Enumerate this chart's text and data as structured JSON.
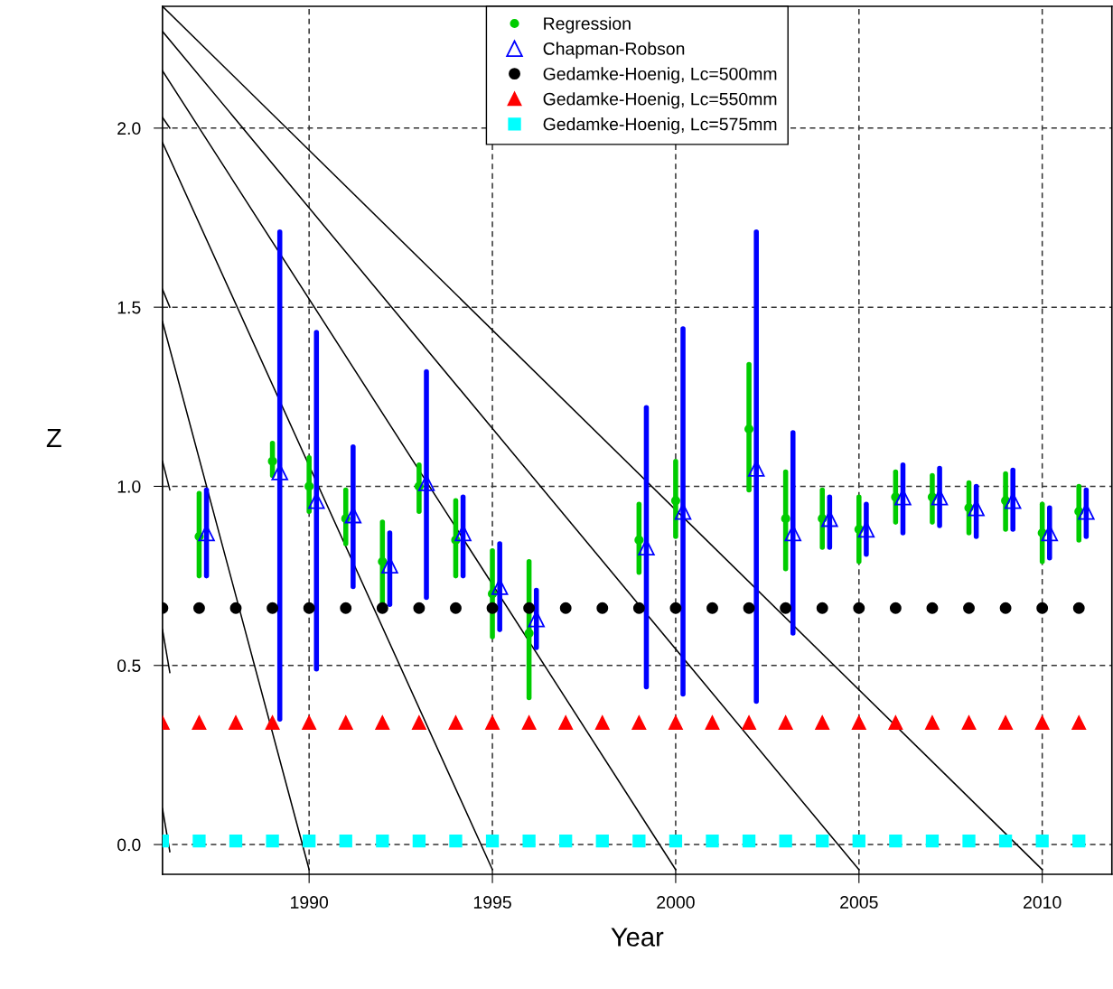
{
  "chart_data": {
    "type": "scatter",
    "xlabel": "Year",
    "ylabel": "Z",
    "xlim": [
      1986,
      2011.9
    ],
    "ylim": [
      -0.083,
      2.34
    ],
    "xticks": [
      1990,
      1995,
      2000,
      2005,
      2010
    ],
    "yticks": [
      {
        "value": 0,
        "label": "0.0"
      },
      {
        "value": 0.5,
        "label": "0.5"
      },
      {
        "value": 1,
        "label": "1.0"
      },
      {
        "value": 1.5,
        "label": "1.5"
      },
      {
        "value": 2,
        "label": "2.0"
      }
    ],
    "grid": true,
    "line_style": "dashed",
    "legend": "top",
    "series": [
      {
        "name": "Regression",
        "color": "#00cc00",
        "marker": "circle",
        "x": [
          1987,
          1989,
          1990,
          1991,
          1992,
          1993,
          1994,
          1995,
          1996,
          1999,
          2000,
          2002,
          2003,
          2004,
          2005,
          2006,
          2007,
          2008,
          2009,
          2010,
          2011
        ],
        "values": [
          0.86,
          1.07,
          1.0,
          0.91,
          0.79,
          1.0,
          0.85,
          0.7,
          0.59,
          0.85,
          0.96,
          1.16,
          0.91,
          0.91,
          0.88,
          0.97,
          0.97,
          0.94,
          0.96,
          0.87,
          0.93
        ],
        "errors": [
          [
            0.75,
            0.98
          ],
          [
            1.03,
            1.12
          ],
          [
            0.93,
            1.08
          ],
          [
            0.84,
            0.99
          ],
          [
            0.67,
            0.9
          ],
          [
            0.93,
            1.06
          ],
          [
            0.75,
            0.96
          ],
          [
            0.58,
            0.82
          ],
          [
            0.41,
            0.79
          ],
          [
            0.76,
            0.95
          ],
          [
            0.86,
            1.07
          ],
          [
            0.99,
            1.34
          ],
          [
            0.77,
            1.04
          ],
          [
            0.83,
            0.99
          ],
          [
            0.79,
            0.97
          ],
          [
            0.9,
            1.04
          ],
          [
            0.9,
            1.03
          ],
          [
            0.87,
            1.01
          ],
          [
            0.88,
            1.035
          ],
          [
            0.79,
            0.95
          ],
          [
            0.85,
            1.0
          ]
        ]
      },
      {
        "name": "Chapman-Robson",
        "color": "#0000ff",
        "marker": "triangle",
        "x": [
          1987.2,
          1989.2,
          1990.2,
          1991.2,
          1992.2,
          1993.2,
          1994.2,
          1995.2,
          1996.2,
          1999.2,
          2000.2,
          2002.2,
          2003.2,
          2004.2,
          2005.2,
          2006.2,
          2007.2,
          2008.2,
          2009.2,
          2010.2,
          2011.2
        ],
        "values": [
          0.87,
          1.04,
          0.96,
          0.92,
          0.78,
          1.01,
          0.87,
          0.72,
          0.63,
          0.83,
          0.93,
          1.05,
          0.87,
          0.91,
          0.88,
          0.97,
          0.97,
          0.94,
          0.96,
          0.87,
          0.93
        ],
        "errors": [
          [
            0.75,
            0.99
          ],
          [
            0.35,
            1.71
          ],
          [
            0.49,
            1.43
          ],
          [
            0.72,
            1.11
          ],
          [
            0.67,
            0.87
          ],
          [
            0.69,
            1.32
          ],
          [
            0.75,
            0.97
          ],
          [
            0.6,
            0.84
          ],
          [
            0.55,
            0.71
          ],
          [
            0.44,
            1.22
          ],
          [
            0.42,
            1.44
          ],
          [
            0.4,
            1.71
          ],
          [
            0.59,
            1.15
          ],
          [
            0.83,
            0.97
          ],
          [
            0.81,
            0.95
          ],
          [
            0.87,
            1.06
          ],
          [
            0.89,
            1.05
          ],
          [
            0.86,
            1.0
          ],
          [
            0.88,
            1.045
          ],
          [
            0.8,
            0.94
          ],
          [
            0.86,
            0.99
          ]
        ]
      },
      {
        "name": "Gedamke-Hoenig, Lc=500mm",
        "color": "#000000",
        "marker": "circle",
        "x": [
          1986,
          1987,
          1988,
          1989,
          1990,
          1991,
          1992,
          1993,
          1994,
          1995,
          1996,
          1997,
          1998,
          1999,
          2000,
          2001,
          2002,
          2003,
          2004,
          2005,
          2006,
          2007,
          2008,
          2009,
          2010,
          2011
        ],
        "values": [
          0.66,
          0.66,
          0.66,
          0.66,
          0.66,
          0.66,
          0.66,
          0.66,
          0.66,
          0.66,
          0.66,
          0.66,
          0.66,
          0.66,
          0.66,
          0.66,
          0.66,
          0.66,
          0.66,
          0.66,
          0.66,
          0.66,
          0.66,
          0.66,
          0.66,
          0.66
        ]
      },
      {
        "name": "Gedamke-Hoenig, Lc=550mm",
        "color": "#ff0000",
        "marker": "triangle",
        "x": [
          1986,
          1987,
          1988,
          1989,
          1990,
          1991,
          1992,
          1993,
          1994,
          1995,
          1996,
          1997,
          1998,
          1999,
          2000,
          2001,
          2002,
          2003,
          2004,
          2005,
          2006,
          2007,
          2008,
          2009,
          2010,
          2011
        ],
        "values": [
          0.34,
          0.34,
          0.34,
          0.34,
          0.34,
          0.34,
          0.34,
          0.34,
          0.34,
          0.34,
          0.34,
          0.34,
          0.34,
          0.34,
          0.34,
          0.34,
          0.34,
          0.34,
          0.34,
          0.34,
          0.34,
          0.34,
          0.34,
          0.34,
          0.34,
          0.34
        ]
      },
      {
        "name": "Gedamke-Hoenig, Lc=575mm",
        "color": "#00ffff",
        "marker": "square",
        "x": [
          1986,
          1987,
          1988,
          1989,
          1990,
          1991,
          1992,
          1993,
          1994,
          1995,
          1996,
          1997,
          1998,
          1999,
          2000,
          2001,
          2002,
          2003,
          2004,
          2005,
          2006,
          2007,
          2008,
          2009,
          2010,
          2011
        ],
        "values": [
          0.01,
          0.01,
          0.01,
          0.01,
          0.01,
          0.01,
          0.01,
          0.01,
          0.01,
          0.01,
          0.01,
          0.01,
          0.01,
          0.01,
          0.01,
          0.01,
          0.01,
          0.01,
          0.01,
          0.01,
          0.01,
          0.01,
          0.01,
          0.01,
          0.01,
          0.01
        ]
      },
      {
        "type": "line",
        "color": "#000000",
        "line_style": "solid",
        "x": [
          1986,
          2010
        ],
        "values": [
          2.34,
          -0.07
        ]
      },
      {
        "type": "line",
        "color": "#000000",
        "line_style": "solid",
        "x": [
          1986,
          2005
        ],
        "values": [
          2.27,
          -0.07
        ]
      },
      {
        "type": "line",
        "color": "#000000",
        "line_style": "solid",
        "x": [
          1986,
          2000
        ],
        "values": [
          2.16,
          -0.07
        ]
      },
      {
        "type": "line",
        "color": "#000000",
        "line_style": "solid",
        "x": [
          1986,
          1995
        ],
        "values": [
          1.96,
          -0.07
        ]
      },
      {
        "type": "line",
        "color": "#000000",
        "line_style": "solid",
        "x": [
          1986,
          1990
        ],
        "values": [
          1.46,
          -0.07
        ]
      },
      {
        "type": "line",
        "color": "#000000",
        "line_style": "solid",
        "x": [
          1986,
          1986.2
        ],
        "values": [
          2.03,
          2.0
        ]
      },
      {
        "type": "line",
        "color": "#000000",
        "line_style": "solid",
        "x": [
          1986,
          1986.2
        ],
        "values": [
          1.55,
          1.5
        ]
      },
      {
        "type": "line",
        "color": "#000000",
        "line_style": "solid",
        "x": [
          1986,
          1986.2
        ],
        "values": [
          1.07,
          0.99
        ]
      },
      {
        "type": "line",
        "color": "#000000",
        "line_style": "solid",
        "x": [
          1986,
          1986.2
        ],
        "values": [
          0.6,
          0.48
        ]
      },
      {
        "type": "line",
        "color": "#000000",
        "line_style": "solid",
        "x": [
          1986,
          1986.2
        ],
        "values": [
          0.1,
          -0.02
        ]
      }
    ]
  }
}
